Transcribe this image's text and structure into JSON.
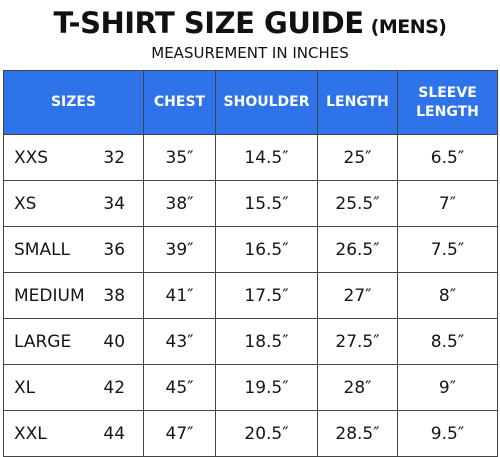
{
  "header": {
    "title_main": "T-SHIRT SIZE GUIDE",
    "title_suffix": "(MENS)",
    "subtitle": "MEASUREMENT IN INCHES"
  },
  "table": {
    "columns": {
      "sizes": "SIZES",
      "chest": "CHEST",
      "shoulder": "SHOULDER",
      "length": "LENGTH",
      "sleeve_line1": "SLEEVE",
      "sleeve_line2": "LENGTH"
    },
    "rows": [
      {
        "size": "XXS",
        "number": "32",
        "chest": "35″",
        "shoulder": "14.5″",
        "length": "25″",
        "sleeve": "6.5″"
      },
      {
        "size": "XS",
        "number": "34",
        "chest": "38″",
        "shoulder": "15.5″",
        "length": "25.5″",
        "sleeve": "7″"
      },
      {
        "size": "SMALL",
        "number": "36",
        "chest": "39″",
        "shoulder": "16.5″",
        "length": "26.5″",
        "sleeve": "7.5″"
      },
      {
        "size": "MEDIUM",
        "number": "38",
        "chest": "41″",
        "shoulder": "17.5″",
        "length": "27″",
        "sleeve": "8″"
      },
      {
        "size": "LARGE",
        "number": "40",
        "chest": "43″",
        "shoulder": "18.5″",
        "length": "27.5″",
        "sleeve": "8.5″"
      },
      {
        "size": "XL",
        "number": "42",
        "chest": "45″",
        "shoulder": "19.5″",
        "length": "28″",
        "sleeve": "9″"
      },
      {
        "size": "XXL",
        "number": "44",
        "chest": "47″",
        "shoulder": "20.5″",
        "length": "28.5″",
        "sleeve": "9.5″"
      }
    ]
  },
  "colors": {
    "header_background": "#2f73ea",
    "header_text": "#ffffff",
    "grid_lines": "#444444"
  }
}
